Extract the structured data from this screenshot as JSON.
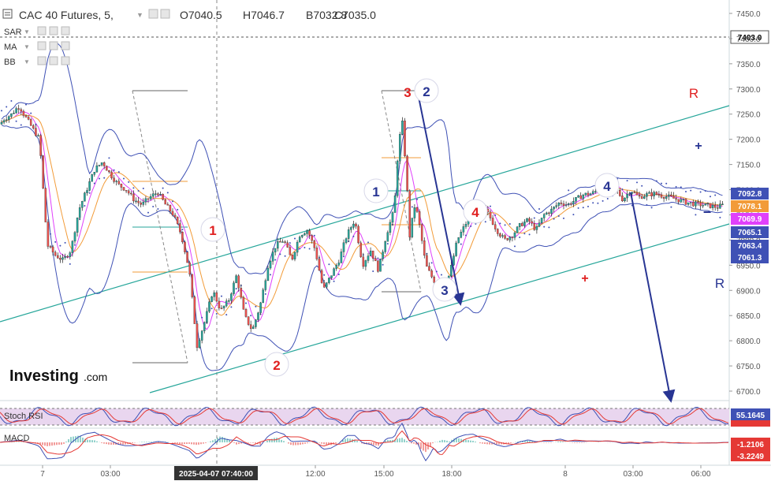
{
  "header": {
    "symbol": "CAC 40 Futures, 5,",
    "open": "O7040.5",
    "high": "H7046.7",
    "low": "B7032.8",
    "close": "C7035.0"
  },
  "indicators": [
    "SAR",
    "MA",
    "BB"
  ],
  "watermark": {
    "brand": "Investing",
    "suffix": ".com"
  },
  "chart_data": {
    "type": "line",
    "title": "CAC 40 Futures, 5,",
    "ohlc": {
      "open": 7040.5,
      "high": 7046.7,
      "low": 7032.8,
      "close": 7035.0
    },
    "y_ticks": [
      "7450.0",
      "7400.0",
      "7350.0",
      "7300.0",
      "7250.0",
      "7200.0",
      "7150.0",
      "7100.0",
      "7050.0",
      "7000.0",
      "6950.0",
      "6900.0",
      "6850.0",
      "6800.0",
      "6750.0",
      "6700.0"
    ],
    "ylim": [
      6700,
      7450
    ],
    "x_ticks": [
      "7",
      "03:00",
      "12:00",
      "15:00",
      "18:00",
      "8",
      "03:00",
      "06:00"
    ],
    "crosshair_label": "2025-04-07 07:40:00",
    "horizontal_line_label": "7403.0",
    "price_labels": [
      {
        "value": "7092.8",
        "color": "#3f51b5"
      },
      {
        "value": "7078.1",
        "color": "#f29b38"
      },
      {
        "value": "7069.9",
        "color": "#e040fb"
      },
      {
        "value": "7065.1",
        "color": "#3f51b5"
      },
      {
        "value": "7063.4",
        "color": "#3f51b5"
      },
      {
        "value": "7061.3",
        "color": "#3f51b5"
      }
    ],
    "series": [
      {
        "name": "Price",
        "x": [
          0,
          5,
          10,
          15,
          20,
          25,
          30,
          40,
          50,
          60,
          70,
          80,
          90,
          100,
          110,
          120,
          130,
          140,
          150,
          160,
          170,
          180,
          190,
          200,
          210,
          220,
          230,
          240,
          250,
          260,
          270,
          280,
          290,
          300,
          310,
          320,
          330,
          340,
          350,
          360,
          370,
          380,
          390,
          400,
          410,
          420,
          430,
          440,
          450,
          460,
          470,
          480,
          490,
          500,
          505,
          510,
          515,
          520,
          525,
          530,
          540,
          550,
          560,
          570,
          580,
          590,
          600,
          610,
          620,
          630,
          640,
          650,
          660,
          670,
          680,
          690,
          700,
          710,
          720,
          730,
          740,
          750,
          760,
          770,
          780,
          790,
          800,
          810,
          820,
          830,
          840,
          850,
          860,
          870,
          880,
          890,
          900,
          910,
          918
        ],
        "values": [
          7230,
          7240,
          7245,
          7250,
          7260,
          7265,
          7250,
          7225,
          7200,
          6990,
          6970,
          6960,
          6980,
          7060,
          7100,
          7140,
          7155,
          7130,
          7110,
          7100,
          7080,
          7070,
          7085,
          7095,
          7070,
          7050,
          7010,
          6940,
          6790,
          6840,
          6900,
          6860,
          6880,
          6930,
          6850,
          6820,
          6870,
          6950,
          6990,
          7000,
          6960,
          7010,
          7020,
          6980,
          6900,
          6930,
          6960,
          7010,
          7040,
          6950,
          6980,
          6940,
          7010,
          7060,
          7180,
          7240,
          7140,
          7000,
          7070,
          7050,
          6950,
          6920,
          6910,
          6930,
          7000,
          7030,
          7060,
          7070,
          7050,
          7020,
          7000,
          7010,
          7030,
          7040,
          7020,
          7050,
          7060,
          7075,
          7070,
          7080,
          7090,
          7092,
          7100,
          7110,
          7105,
          7080,
          7100,
          7085,
          7090,
          7092,
          7088,
          7085,
          7080,
          7075,
          7072,
          7070,
          7068,
          7065,
          7070
        ]
      }
    ],
    "wave_labels": [
      {
        "text": "1",
        "color": "#e02020",
        "circled": true
      },
      {
        "text": "2",
        "color": "#e02020",
        "circled": true
      },
      {
        "text": "3",
        "color": "#e02020",
        "circled": false
      },
      {
        "text": "4",
        "color": "#e02020",
        "circled": true
      },
      {
        "text": "2",
        "color": "#283593",
        "circled": true
      },
      {
        "text": "1",
        "color": "#283593",
        "circled": true
      },
      {
        "text": "3",
        "color": "#283593",
        "circled": true
      },
      {
        "text": "4",
        "color": "#283593",
        "circled": true
      }
    ],
    "annotations": [
      {
        "text": "R",
        "color": "#e02020"
      },
      {
        "text": "R",
        "color": "#283593"
      },
      {
        "text": "+",
        "color": "#283593"
      },
      {
        "text": "−",
        "color": "#283593"
      },
      {
        "text": "+",
        "color": "#e02020"
      }
    ],
    "subpanels": [
      {
        "name": "Stoch RSI",
        "labels": [
          {
            "value": "55.1645",
            "color": "#3f51b5"
          }
        ]
      },
      {
        "name": "MACD",
        "labels": [
          {
            "value": "-1.2106",
            "color": "#e53935"
          },
          {
            "value": "-3.2249",
            "color": "#e53935"
          }
        ]
      }
    ],
    "colors": {
      "bull": "#26a69a",
      "bear": "#ef5350",
      "bb": "#3f51b5",
      "ma": "#f29b38",
      "ma2": "#e040fb",
      "channel": "#26a69a",
      "sar": "#3f51b5"
    }
  }
}
